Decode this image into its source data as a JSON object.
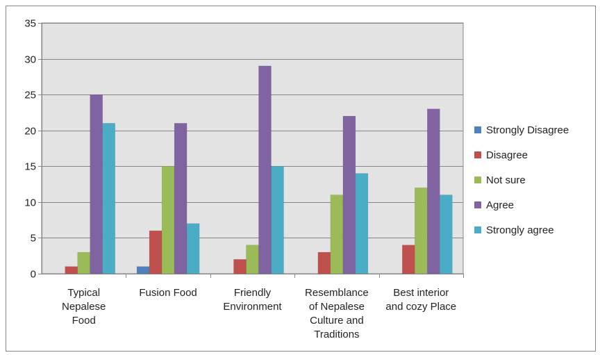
{
  "chart_data": {
    "type": "bar",
    "title": "",
    "xlabel": "",
    "ylabel": "",
    "ylim": [
      0,
      35
    ],
    "yticks": [
      0,
      5,
      10,
      15,
      20,
      25,
      30,
      35
    ],
    "grid": true,
    "legend_position": "right",
    "categories": [
      [
        "Typical",
        "Nepalese",
        "Food"
      ],
      [
        "Fusion Food"
      ],
      [
        "Friendly",
        "Environment"
      ],
      [
        "Resemblance",
        "of Nepalese",
        "Culture and",
        "Traditions"
      ],
      [
        "Best interior",
        "and cozy Place"
      ]
    ],
    "series": [
      {
        "name": "Strongly Disagree",
        "color": "#4F81BD",
        "values": [
          0,
          1,
          0,
          0,
          0
        ]
      },
      {
        "name": "Disagree",
        "color": "#C0504D",
        "values": [
          1,
          6,
          2,
          3,
          4
        ]
      },
      {
        "name": "Not sure",
        "color": "#9BBB59",
        "values": [
          3,
          15,
          4,
          11,
          12
        ]
      },
      {
        "name": "Agree",
        "color": "#8064A2",
        "values": [
          25,
          21,
          29,
          22,
          23
        ]
      },
      {
        "name": "Strongly agree",
        "color": "#4BACC6",
        "values": [
          21,
          7,
          15,
          14,
          11
        ]
      }
    ]
  }
}
